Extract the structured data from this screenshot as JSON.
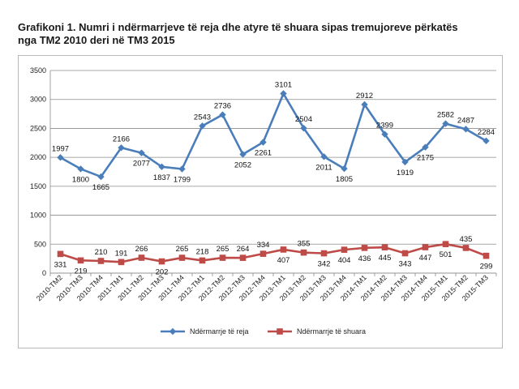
{
  "title_line1": "Grafikoni 1. Numri i ndërmarrjeve të reja dhe atyre të shuara sipas tremujoreve përkatës",
  "title_line2": "nga TM2 2010 deri në TM3 2015",
  "chart_data": {
    "type": "line",
    "title": "Grafikoni 1. Numri i ndërmarrjeve të reja dhe atyre të shuara sipas tremujoreve përkatës nga TM2 2010 deri në TM3 2015",
    "xlabel": "",
    "ylabel": "",
    "ylim": [
      0,
      3500
    ],
    "ytick_step": 500,
    "yticks": [
      "0",
      "500",
      "1000",
      "1500",
      "2000",
      "2500",
      "3000",
      "3500"
    ],
    "grid": true,
    "legend_position": "bottom",
    "categories": [
      "2010-TM2",
      "2010-TM3",
      "2010-TM4",
      "2011-TM1",
      "2011-TM2",
      "2011-TM3",
      "2011-TM4",
      "2012-TM1",
      "2012-TM2",
      "2012-TM3",
      "2012-TM4",
      "2013-TM1",
      "2013-TM2",
      "2013-TM3",
      "2013-TM4",
      "2014-TM1",
      "2014-TM2",
      "2014-TM3",
      "2014-TM4",
      "2015-TM1",
      "2015-TM2",
      "2015-TM3"
    ],
    "series": [
      {
        "name": "Ndërmarrje të reja",
        "color": "#4a7ebb",
        "marker": "diamond",
        "values": [
          1997,
          1800,
          1665,
          2166,
          2077,
          1837,
          1799,
          2543,
          2736,
          2052,
          2261,
          3101,
          2504,
          2011,
          1805,
          2912,
          2399,
          1919,
          2175,
          2582,
          2487,
          2284
        ]
      },
      {
        "name": "Ndërmarrje të shuara",
        "color": "#be4b48",
        "marker": "square",
        "values": [
          331,
          219,
          210,
          191,
          266,
          202,
          265,
          218,
          265,
          264,
          334,
          407,
          355,
          342,
          404,
          436,
          445,
          343,
          447,
          501,
          435,
          299
        ]
      }
    ]
  }
}
